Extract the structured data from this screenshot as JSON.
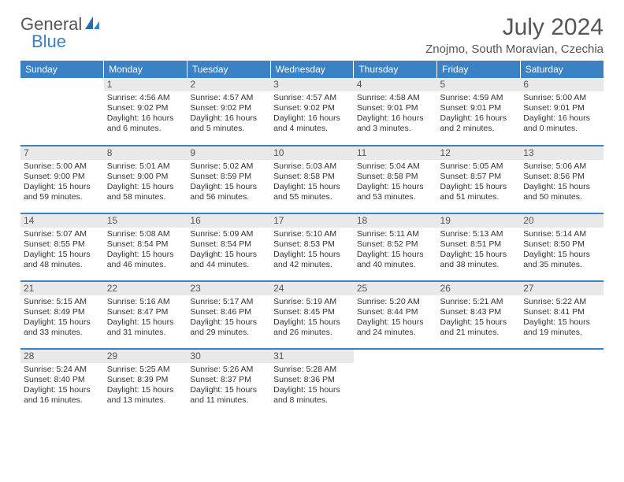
{
  "logo": {
    "text1": "General",
    "text2": "Blue"
  },
  "title": "July 2024",
  "location": "Znojmo, South Moravian, Czechia",
  "colors": {
    "header_bg": "#3b82c4",
    "header_text": "#ffffff",
    "daynum_bg": "#e9e9e9",
    "border": "#3b82c4",
    "text": "#333333",
    "title_text": "#555555"
  },
  "fonts": {
    "title_size": 30,
    "location_size": 15,
    "dayhead_size": 12,
    "cell_size": 10.5
  },
  "day_headers": [
    "Sunday",
    "Monday",
    "Tuesday",
    "Wednesday",
    "Thursday",
    "Friday",
    "Saturday"
  ],
  "weeks": [
    [
      null,
      {
        "n": "1",
        "sr": "Sunrise: 4:56 AM",
        "ss": "Sunset: 9:02 PM",
        "d1": "Daylight: 16 hours",
        "d2": "and 6 minutes."
      },
      {
        "n": "2",
        "sr": "Sunrise: 4:57 AM",
        "ss": "Sunset: 9:02 PM",
        "d1": "Daylight: 16 hours",
        "d2": "and 5 minutes."
      },
      {
        "n": "3",
        "sr": "Sunrise: 4:57 AM",
        "ss": "Sunset: 9:02 PM",
        "d1": "Daylight: 16 hours",
        "d2": "and 4 minutes."
      },
      {
        "n": "4",
        "sr": "Sunrise: 4:58 AM",
        "ss": "Sunset: 9:01 PM",
        "d1": "Daylight: 16 hours",
        "d2": "and 3 minutes."
      },
      {
        "n": "5",
        "sr": "Sunrise: 4:59 AM",
        "ss": "Sunset: 9:01 PM",
        "d1": "Daylight: 16 hours",
        "d2": "and 2 minutes."
      },
      {
        "n": "6",
        "sr": "Sunrise: 5:00 AM",
        "ss": "Sunset: 9:01 PM",
        "d1": "Daylight: 16 hours",
        "d2": "and 0 minutes."
      }
    ],
    [
      {
        "n": "7",
        "sr": "Sunrise: 5:00 AM",
        "ss": "Sunset: 9:00 PM",
        "d1": "Daylight: 15 hours",
        "d2": "and 59 minutes."
      },
      {
        "n": "8",
        "sr": "Sunrise: 5:01 AM",
        "ss": "Sunset: 9:00 PM",
        "d1": "Daylight: 15 hours",
        "d2": "and 58 minutes."
      },
      {
        "n": "9",
        "sr": "Sunrise: 5:02 AM",
        "ss": "Sunset: 8:59 PM",
        "d1": "Daylight: 15 hours",
        "d2": "and 56 minutes."
      },
      {
        "n": "10",
        "sr": "Sunrise: 5:03 AM",
        "ss": "Sunset: 8:58 PM",
        "d1": "Daylight: 15 hours",
        "d2": "and 55 minutes."
      },
      {
        "n": "11",
        "sr": "Sunrise: 5:04 AM",
        "ss": "Sunset: 8:58 PM",
        "d1": "Daylight: 15 hours",
        "d2": "and 53 minutes."
      },
      {
        "n": "12",
        "sr": "Sunrise: 5:05 AM",
        "ss": "Sunset: 8:57 PM",
        "d1": "Daylight: 15 hours",
        "d2": "and 51 minutes."
      },
      {
        "n": "13",
        "sr": "Sunrise: 5:06 AM",
        "ss": "Sunset: 8:56 PM",
        "d1": "Daylight: 15 hours",
        "d2": "and 50 minutes."
      }
    ],
    [
      {
        "n": "14",
        "sr": "Sunrise: 5:07 AM",
        "ss": "Sunset: 8:55 PM",
        "d1": "Daylight: 15 hours",
        "d2": "and 48 minutes."
      },
      {
        "n": "15",
        "sr": "Sunrise: 5:08 AM",
        "ss": "Sunset: 8:54 PM",
        "d1": "Daylight: 15 hours",
        "d2": "and 46 minutes."
      },
      {
        "n": "16",
        "sr": "Sunrise: 5:09 AM",
        "ss": "Sunset: 8:54 PM",
        "d1": "Daylight: 15 hours",
        "d2": "and 44 minutes."
      },
      {
        "n": "17",
        "sr": "Sunrise: 5:10 AM",
        "ss": "Sunset: 8:53 PM",
        "d1": "Daylight: 15 hours",
        "d2": "and 42 minutes."
      },
      {
        "n": "18",
        "sr": "Sunrise: 5:11 AM",
        "ss": "Sunset: 8:52 PM",
        "d1": "Daylight: 15 hours",
        "d2": "and 40 minutes."
      },
      {
        "n": "19",
        "sr": "Sunrise: 5:13 AM",
        "ss": "Sunset: 8:51 PM",
        "d1": "Daylight: 15 hours",
        "d2": "and 38 minutes."
      },
      {
        "n": "20",
        "sr": "Sunrise: 5:14 AM",
        "ss": "Sunset: 8:50 PM",
        "d1": "Daylight: 15 hours",
        "d2": "and 35 minutes."
      }
    ],
    [
      {
        "n": "21",
        "sr": "Sunrise: 5:15 AM",
        "ss": "Sunset: 8:49 PM",
        "d1": "Daylight: 15 hours",
        "d2": "and 33 minutes."
      },
      {
        "n": "22",
        "sr": "Sunrise: 5:16 AM",
        "ss": "Sunset: 8:47 PM",
        "d1": "Daylight: 15 hours",
        "d2": "and 31 minutes."
      },
      {
        "n": "23",
        "sr": "Sunrise: 5:17 AM",
        "ss": "Sunset: 8:46 PM",
        "d1": "Daylight: 15 hours",
        "d2": "and 29 minutes."
      },
      {
        "n": "24",
        "sr": "Sunrise: 5:19 AM",
        "ss": "Sunset: 8:45 PM",
        "d1": "Daylight: 15 hours",
        "d2": "and 26 minutes."
      },
      {
        "n": "25",
        "sr": "Sunrise: 5:20 AM",
        "ss": "Sunset: 8:44 PM",
        "d1": "Daylight: 15 hours",
        "d2": "and 24 minutes."
      },
      {
        "n": "26",
        "sr": "Sunrise: 5:21 AM",
        "ss": "Sunset: 8:43 PM",
        "d1": "Daylight: 15 hours",
        "d2": "and 21 minutes."
      },
      {
        "n": "27",
        "sr": "Sunrise: 5:22 AM",
        "ss": "Sunset: 8:41 PM",
        "d1": "Daylight: 15 hours",
        "d2": "and 19 minutes."
      }
    ],
    [
      {
        "n": "28",
        "sr": "Sunrise: 5:24 AM",
        "ss": "Sunset: 8:40 PM",
        "d1": "Daylight: 15 hours",
        "d2": "and 16 minutes."
      },
      {
        "n": "29",
        "sr": "Sunrise: 5:25 AM",
        "ss": "Sunset: 8:39 PM",
        "d1": "Daylight: 15 hours",
        "d2": "and 13 minutes."
      },
      {
        "n": "30",
        "sr": "Sunrise: 5:26 AM",
        "ss": "Sunset: 8:37 PM",
        "d1": "Daylight: 15 hours",
        "d2": "and 11 minutes."
      },
      {
        "n": "31",
        "sr": "Sunrise: 5:28 AM",
        "ss": "Sunset: 8:36 PM",
        "d1": "Daylight: 15 hours",
        "d2": "and 8 minutes."
      },
      null,
      null,
      null
    ]
  ]
}
